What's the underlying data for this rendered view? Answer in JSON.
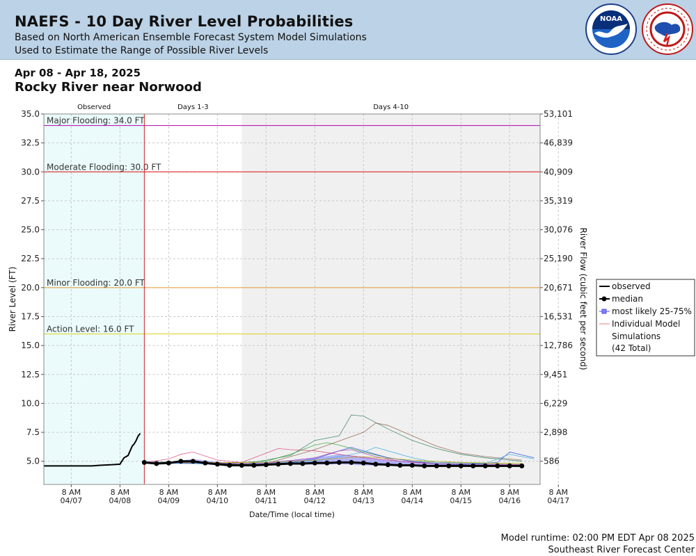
{
  "header": {
    "title": "NAEFS - 10 Day River Level Probabilities",
    "subtitle1": "Based on North American Ensemble Forecast System Model Simulations",
    "subtitle2": "Used to Estimate the Range of Possible River Levels"
  },
  "period": "Apr 08 - Apr 18, 2025",
  "location": "Rocky River near Norwood",
  "footer": {
    "runtime": "Model runtime: 02:00 PM EDT Apr 08 2025",
    "center": "Southeast River Forecast Center"
  },
  "colors": {
    "observed_bg": "#ebfbfb",
    "days410_bg": "#f0f0f0",
    "major": "#b000b0",
    "moderate": "#e01010",
    "minor": "#e69a30",
    "action": "#e0d020",
    "median": "#000000",
    "band": "#8080ff"
  },
  "chart_data": {
    "type": "line",
    "section_labels": [
      "Observed",
      "Days 1-3",
      "Days 4-10"
    ],
    "xlabel": "Date/Time (local time)",
    "ylabel": "River Level (FT)",
    "ylabel_right": "River Flow (cubic feet per second)",
    "ylim": [
      3.0,
      35.0
    ],
    "xlim_hours": [
      -13.5,
      231
    ],
    "x_tick_labels": [
      [
        "8 AM",
        "04/07"
      ],
      [
        "8 AM",
        "04/08"
      ],
      [
        "8 AM",
        "04/09"
      ],
      [
        "8 AM",
        "04/10"
      ],
      [
        "8 AM",
        "04/11"
      ],
      [
        "8 AM",
        "04/12"
      ],
      [
        "8 AM",
        "04/13"
      ],
      [
        "8 AM",
        "04/14"
      ],
      [
        "8 AM",
        "04/15"
      ],
      [
        "8 AM",
        "04/16"
      ],
      [
        "8 AM",
        "04/17"
      ]
    ],
    "y_ticks": [
      "35.0",
      "32.5",
      "30.0",
      "27.5",
      "25.0",
      "22.5",
      "20.0",
      "17.5",
      "15.0",
      "12.5",
      "10.0",
      "7.5",
      "5.0"
    ],
    "y2_ticks": [
      "53,101",
      "46,839",
      "40,909",
      "35,319",
      "30,076",
      "25,190",
      "20,671",
      "16,531",
      "12,786",
      "9,451",
      "6,229",
      "2,898",
      "586"
    ],
    "grid": true,
    "thresholds": [
      {
        "label": "Major Flooding: 34.0 FT",
        "value": 34.0,
        "color": "#b000b0"
      },
      {
        "label": "Moderate Flooding: 30.0 FT",
        "value": 30.0,
        "color": "#e01010"
      },
      {
        "label": "Minor Flooding: 20.0 FT",
        "value": 20.0,
        "color": "#e69a30"
      },
      {
        "label": "Action Level: 16.0 FT",
        "value": 16.0,
        "color": "#e0d020"
      }
    ],
    "observed": {
      "name": "observed",
      "points": [
        [
          -13.5,
          4.6
        ],
        [
          0,
          4.6
        ],
        [
          10,
          4.6
        ],
        [
          14,
          4.65
        ],
        [
          20,
          4.7
        ],
        [
          24,
          4.75
        ],
        [
          26,
          5.3
        ],
        [
          28,
          5.5
        ],
        [
          29,
          5.9
        ],
        [
          30,
          6.3
        ],
        [
          31,
          6.5
        ],
        [
          32,
          6.8
        ],
        [
          33,
          7.2
        ],
        [
          34,
          7.4
        ]
      ]
    },
    "median": {
      "name": "median",
      "points": [
        [
          36,
          4.9
        ],
        [
          42,
          4.8
        ],
        [
          48,
          4.85
        ],
        [
          54,
          5.0
        ],
        [
          60,
          5.0
        ],
        [
          66,
          4.85
        ],
        [
          72,
          4.75
        ],
        [
          78,
          4.65
        ],
        [
          84,
          4.65
        ],
        [
          90,
          4.65
        ],
        [
          96,
          4.7
        ],
        [
          102,
          4.75
        ],
        [
          108,
          4.8
        ],
        [
          114,
          4.8
        ],
        [
          120,
          4.85
        ],
        [
          126,
          4.85
        ],
        [
          132,
          4.9
        ],
        [
          138,
          4.9
        ],
        [
          144,
          4.85
        ],
        [
          150,
          4.75
        ],
        [
          156,
          4.7
        ],
        [
          162,
          4.65
        ],
        [
          168,
          4.65
        ],
        [
          174,
          4.6
        ],
        [
          180,
          4.6
        ],
        [
          186,
          4.6
        ],
        [
          192,
          4.6
        ],
        [
          198,
          4.6
        ],
        [
          204,
          4.6
        ],
        [
          210,
          4.6
        ],
        [
          216,
          4.6
        ],
        [
          222,
          4.6
        ]
      ]
    },
    "band": {
      "name": "most likely 25-75%",
      "hours": [
        36,
        48,
        60,
        72,
        84,
        96,
        108,
        120,
        132,
        144,
        156,
        168,
        180,
        192,
        204,
        216,
        222
      ],
      "low": [
        4.8,
        4.75,
        4.8,
        4.65,
        4.6,
        4.65,
        4.7,
        4.7,
        4.75,
        4.65,
        4.6,
        4.55,
        4.55,
        4.55,
        4.55,
        4.55,
        4.55
      ],
      "high": [
        5.0,
        4.95,
        5.2,
        4.95,
        4.8,
        4.95,
        5.1,
        5.3,
        5.6,
        5.4,
        5.1,
        4.9,
        4.8,
        4.75,
        4.75,
        4.7,
        4.7
      ]
    },
    "simulations": [
      {
        "color": "#2e7d5b",
        "points": [
          [
            36,
            4.9
          ],
          [
            60,
            5.0
          ],
          [
            84,
            4.7
          ],
          [
            108,
            5.5
          ],
          [
            120,
            6.8
          ],
          [
            132,
            7.2
          ],
          [
            138,
            9.0
          ],
          [
            144,
            8.9
          ],
          [
            156,
            7.8
          ],
          [
            168,
            6.8
          ],
          [
            180,
            6.1
          ],
          [
            192,
            5.6
          ],
          [
            204,
            5.3
          ],
          [
            216,
            5.1
          ],
          [
            222,
            5.0
          ]
        ]
      },
      {
        "color": "#8a5a44",
        "points": [
          [
            36,
            4.9
          ],
          [
            72,
            4.8
          ],
          [
            96,
            4.8
          ],
          [
            120,
            6.0
          ],
          [
            144,
            7.5
          ],
          [
            150,
            8.3
          ],
          [
            156,
            8.1
          ],
          [
            168,
            7.2
          ],
          [
            180,
            6.3
          ],
          [
            192,
            5.7
          ],
          [
            204,
            5.4
          ],
          [
            216,
            5.2
          ],
          [
            222,
            5.1
          ]
        ]
      },
      {
        "color": "#e0407a",
        "points": [
          [
            36,
            4.9
          ],
          [
            48,
            5.2
          ],
          [
            54,
            5.6
          ],
          [
            60,
            5.8
          ],
          [
            72,
            5.1
          ],
          [
            84,
            4.9
          ],
          [
            96,
            5.7
          ],
          [
            102,
            6.1
          ],
          [
            108,
            6.0
          ],
          [
            120,
            5.9
          ],
          [
            132,
            5.6
          ],
          [
            144,
            5.3
          ],
          [
            156,
            5.1
          ],
          [
            168,
            4.9
          ],
          [
            180,
            4.8
          ],
          [
            222,
            4.7
          ]
        ]
      },
      {
        "color": "#30a030",
        "points": [
          [
            36,
            4.9
          ],
          [
            72,
            4.8
          ],
          [
            96,
            5.0
          ],
          [
            108,
            5.6
          ],
          [
            120,
            6.4
          ],
          [
            126,
            6.6
          ],
          [
            132,
            6.4
          ],
          [
            144,
            5.8
          ],
          [
            156,
            5.3
          ],
          [
            168,
            5.0
          ],
          [
            180,
            4.9
          ],
          [
            222,
            4.8
          ]
        ]
      },
      {
        "color": "#3050e0",
        "points": [
          [
            36,
            4.9
          ],
          [
            84,
            4.7
          ],
          [
            108,
            4.9
          ],
          [
            120,
            5.2
          ],
          [
            132,
            5.9
          ],
          [
            138,
            6.2
          ],
          [
            144,
            5.9
          ],
          [
            156,
            5.3
          ],
          [
            168,
            5.0
          ],
          [
            180,
            4.8
          ],
          [
            192,
            4.7
          ],
          [
            210,
            4.9
          ],
          [
            216,
            5.8
          ],
          [
            228,
            5.3
          ]
        ]
      },
      {
        "color": "#40b0e0",
        "points": [
          [
            36,
            4.9
          ],
          [
            84,
            4.7
          ],
          [
            120,
            5.0
          ],
          [
            144,
            5.8
          ],
          [
            150,
            6.2
          ],
          [
            156,
            5.9
          ],
          [
            168,
            5.3
          ],
          [
            180,
            4.9
          ],
          [
            204,
            4.8
          ],
          [
            216,
            5.6
          ],
          [
            228,
            5.2
          ]
        ]
      },
      {
        "color": "#a040c0",
        "points": [
          [
            36,
            4.9
          ],
          [
            96,
            4.8
          ],
          [
            120,
            5.3
          ],
          [
            132,
            5.9
          ],
          [
            138,
            6.0
          ],
          [
            150,
            5.4
          ],
          [
            162,
            5.0
          ],
          [
            180,
            4.8
          ],
          [
            222,
            4.7
          ]
        ]
      },
      {
        "color": "#c0a000",
        "points": [
          [
            36,
            4.9
          ],
          [
            72,
            4.9
          ],
          [
            96,
            4.9
          ],
          [
            120,
            5.1
          ],
          [
            144,
            5.4
          ],
          [
            168,
            5.1
          ],
          [
            192,
            4.9
          ],
          [
            222,
            4.8
          ]
        ]
      }
    ],
    "legend": {
      "placement": "right",
      "entries": [
        "observed",
        "median",
        "most likely 25-75%",
        "Individual Model",
        "Simulations",
        "(42 Total)"
      ]
    }
  }
}
